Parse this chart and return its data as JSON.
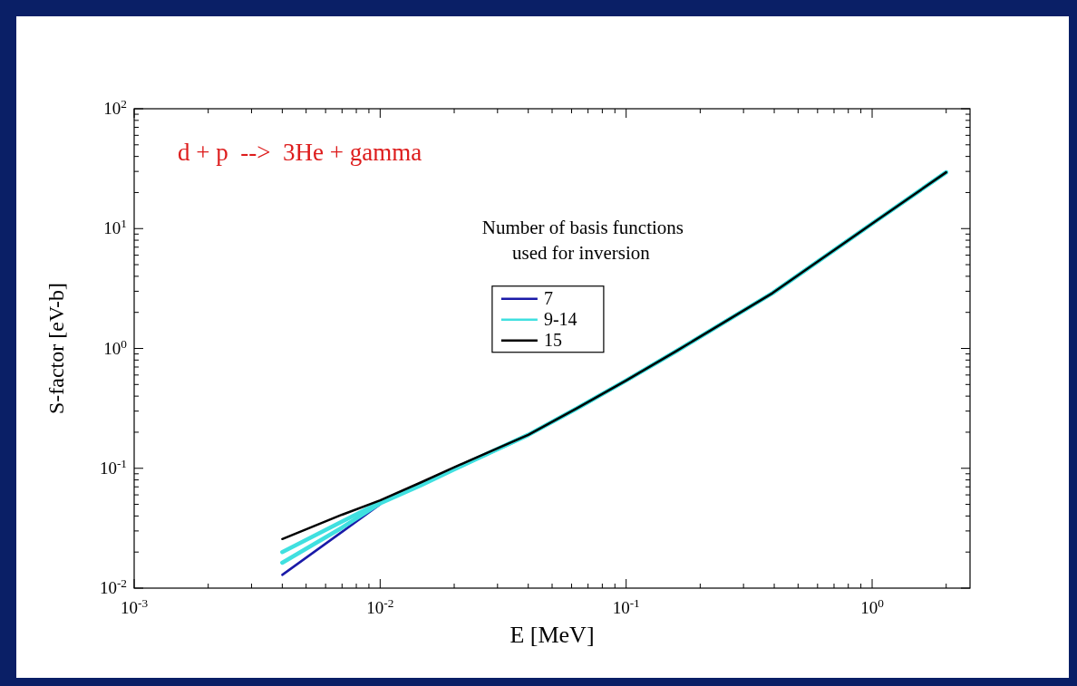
{
  "chart_data": {
    "type": "line",
    "xlabel": "E [MeV]",
    "ylabel": "S-factor [eV-b]",
    "legend_title": "Number of basis functions\nused for inversion",
    "annotations": [
      "d + p  -->  3He + gamma"
    ],
    "log": "xy",
    "legend": "top",
    "line_style": "solid",
    "marker": "none",
    "xlim": [
      0.001,
      2.5
    ],
    "ylim": [
      0.01,
      100
    ],
    "xticks": [
      {
        "value": 0.001,
        "label": "10$^{-3}$"
      },
      {
        "value": 0.002,
        "label": null
      },
      {
        "value": 0.003,
        "label": null
      },
      {
        "value": 0.004,
        "label": null
      },
      {
        "value": 0.005,
        "label": null
      },
      {
        "value": 0.006,
        "label": null
      },
      {
        "value": 0.007,
        "label": null
      },
      {
        "value": 0.008,
        "label": null
      },
      {
        "value": 0.009,
        "label": null
      },
      {
        "value": 0.01,
        "label": "10$^{-2}$"
      },
      {
        "value": 0.02,
        "label": null
      },
      {
        "value": 0.03,
        "label": null
      },
      {
        "value": 0.04,
        "label": null
      },
      {
        "value": 0.05,
        "label": null
      },
      {
        "value": 0.06,
        "label": null
      },
      {
        "value": 0.07,
        "label": null
      },
      {
        "value": 0.08,
        "label": null
      },
      {
        "value": 0.09,
        "label": null
      },
      {
        "value": 0.1,
        "label": "10$^{-1}$"
      },
      {
        "value": 0.2,
        "label": null
      },
      {
        "value": 0.3,
        "label": null
      },
      {
        "value": 0.4,
        "label": null
      },
      {
        "value": 0.5,
        "label": null
      },
      {
        "value": 0.6,
        "label": null
      },
      {
        "value": 0.7,
        "label": null
      },
      {
        "value": 0.8,
        "label": null
      },
      {
        "value": 0.9,
        "label": null
      },
      {
        "value": 1,
        "label": "10$^{0}$"
      },
      {
        "value": 2,
        "label": null
      }
    ],
    "yticks": [
      {
        "value": 0.01,
        "label": "10$^{-2}$"
      },
      {
        "value": 0.02,
        "label": null
      },
      {
        "value": 0.03,
        "label": null
      },
      {
        "value": 0.04,
        "label": null
      },
      {
        "value": 0.05,
        "label": null
      },
      {
        "value": 0.06,
        "label": null
      },
      {
        "value": 0.07,
        "label": null
      },
      {
        "value": 0.08,
        "label": null
      },
      {
        "value": 0.09,
        "label": null
      },
      {
        "value": 0.1,
        "label": "10$^{-1}$"
      },
      {
        "value": 0.2,
        "label": null
      },
      {
        "value": 0.3,
        "label": null
      },
      {
        "value": 0.4,
        "label": null
      },
      {
        "value": 0.5,
        "label": null
      },
      {
        "value": 0.6,
        "label": null
      },
      {
        "value": 0.7,
        "label": null
      },
      {
        "value": 0.8,
        "label": null
      },
      {
        "value": 0.9,
        "label": null
      },
      {
        "value": 1,
        "label": "10$^{0}$"
      },
      {
        "value": 2,
        "label": null
      },
      {
        "value": 3,
        "label": null
      },
      {
        "value": 4,
        "label": null
      },
      {
        "value": 5,
        "label": null
      },
      {
        "value": 6,
        "label": null
      },
      {
        "value": 7,
        "label": null
      },
      {
        "value": 8,
        "label": null
      },
      {
        "value": 9,
        "label": null
      },
      {
        "value": 10,
        "label": "10$^{1}$"
      },
      {
        "value": 20,
        "label": null
      },
      {
        "value": 30,
        "label": null
      },
      {
        "value": 40,
        "label": null
      },
      {
        "value": 50,
        "label": null
      },
      {
        "value": 60,
        "label": null
      },
      {
        "value": 70,
        "label": null
      },
      {
        "value": 80,
        "label": null
      },
      {
        "value": 90,
        "label": null
      },
      {
        "value": 100,
        "label": "10$^{2}$"
      }
    ],
    "x": [
      0.004,
      0.007,
      0.01,
      0.0146,
      0.02,
      0.04,
      0.063,
      0.1,
      0.16,
      0.394,
      1.0,
      2.0
    ],
    "series": [
      {
        "name": "7",
        "color": "#1a1aa8",
        "values": [
          0.0129,
          0.0295,
          0.05,
          null,
          null,
          null,
          null,
          null,
          null,
          null,
          null,
          null
        ]
      },
      {
        "name": "9-14",
        "color": "#40e0e0",
        "values": [
          0.02,
          0.036,
          0.052,
          0.073,
          0.099,
          0.19,
          0.316,
          0.54,
          0.95,
          2.9,
          11,
          29.5
        ]
      },
      {
        "color": "#40e0e0",
        "values": [
          0.0163,
          0.032,
          0.051,
          0.072,
          0.098,
          0.19,
          0.316,
          0.54,
          0.95,
          2.9,
          11,
          29.5
        ]
      },
      {
        "name": "15",
        "color": "#000000",
        "values": [
          0.0257,
          0.041,
          0.054,
          0.076,
          0.102,
          0.19,
          0.316,
          0.54,
          0.95,
          2.9,
          11,
          29.5
        ]
      }
    ]
  }
}
